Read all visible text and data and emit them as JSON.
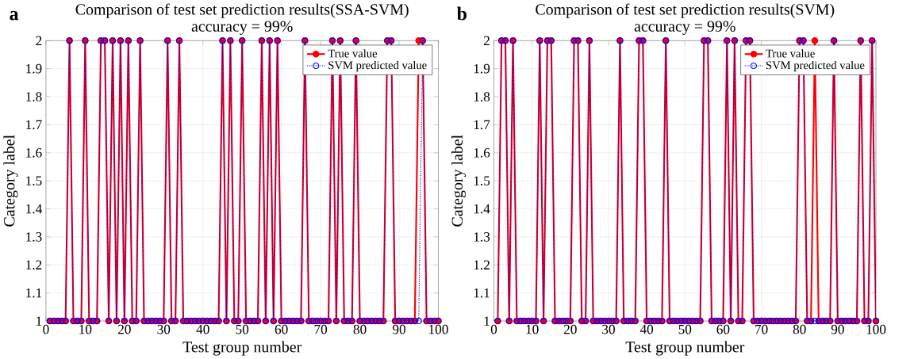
{
  "chart_data": [
    {
      "type": "line",
      "title": "Comparison of test set prediction results(SSA-SVM)",
      "subtitle": "accuracy = 99%",
      "xlabel": "Test group number",
      "ylabel": "Category label",
      "annotations": [
        "a"
      ],
      "x": [
        1,
        2,
        3,
        4,
        5,
        6,
        7,
        8,
        9,
        10,
        11,
        12,
        13,
        14,
        15,
        16,
        17,
        18,
        19,
        20,
        21,
        22,
        23,
        24,
        25,
        26,
        27,
        28,
        29,
        30,
        31,
        32,
        33,
        34,
        35,
        36,
        37,
        38,
        39,
        40,
        41,
        42,
        43,
        44,
        45,
        46,
        47,
        48,
        49,
        50,
        51,
        52,
        53,
        54,
        55,
        56,
        57,
        58,
        59,
        60,
        61,
        62,
        63,
        64,
        65,
        66,
        67,
        68,
        69,
        70,
        71,
        72,
        73,
        74,
        75,
        76,
        77,
        78,
        79,
        80,
        81,
        82,
        83,
        84,
        85,
        86,
        87,
        88,
        89,
        90,
        91,
        92,
        93,
        94,
        95,
        96,
        97,
        98,
        99,
        100
      ],
      "series": [
        {
          "name": "True value",
          "color": "#ff0000",
          "marker": "circle",
          "line_style": "solid",
          "values": [
            1,
            1,
            1,
            1,
            1,
            2,
            1,
            1,
            1,
            2,
            1,
            1,
            1,
            2,
            2,
            1,
            2,
            1,
            2,
            1,
            2,
            1,
            1,
            2,
            1,
            1,
            1,
            1,
            1,
            1,
            2,
            1,
            1,
            2,
            1,
            1,
            1,
            1,
            1,
            1,
            1,
            1,
            1,
            1,
            2,
            1,
            2,
            1,
            1,
            2,
            1,
            1,
            1,
            1,
            2,
            1,
            2,
            1,
            2,
            1,
            1,
            1,
            1,
            1,
            1,
            2,
            1,
            1,
            1,
            1,
            1,
            1,
            2,
            1,
            2,
            1,
            1,
            1,
            2,
            1,
            1,
            1,
            1,
            1,
            1,
            1,
            2,
            2,
            1,
            1,
            1,
            1,
            1,
            1,
            2,
            2,
            1,
            1,
            1,
            1
          ]
        },
        {
          "name": "SVM predicted value",
          "color": "#0000ff",
          "marker": "circle",
          "line_style": "dotted",
          "values": [
            1,
            1,
            1,
            1,
            1,
            2,
            1,
            1,
            1,
            2,
            1,
            1,
            1,
            2,
            2,
            1,
            2,
            1,
            2,
            1,
            2,
            1,
            1,
            2,
            1,
            1,
            1,
            1,
            1,
            1,
            2,
            1,
            1,
            2,
            1,
            1,
            1,
            1,
            1,
            1,
            1,
            1,
            1,
            1,
            2,
            1,
            2,
            1,
            1,
            2,
            1,
            1,
            1,
            1,
            2,
            1,
            2,
            1,
            2,
            1,
            1,
            1,
            1,
            1,
            1,
            2,
            1,
            1,
            1,
            1,
            1,
            1,
            2,
            1,
            2,
            1,
            1,
            1,
            2,
            1,
            1,
            1,
            1,
            1,
            1,
            1,
            2,
            2,
            1,
            1,
            1,
            1,
            1,
            1,
            1,
            2,
            1,
            1,
            1,
            1
          ]
        }
      ],
      "xlim": [
        0,
        100
      ],
      "xticks": [
        0,
        10,
        20,
        30,
        40,
        50,
        60,
        70,
        80,
        90,
        100
      ],
      "ylim": [
        1,
        2
      ],
      "yticks": [
        1,
        1.1,
        1.2,
        1.3,
        1.4,
        1.5,
        1.6,
        1.7,
        1.8,
        1.9,
        2
      ],
      "grid": true,
      "legend": "top right"
    },
    {
      "type": "line",
      "title": "Comparison of test set prediction results(SVM)",
      "subtitle": "accuracy = 99%",
      "xlabel": "Test group number",
      "ylabel": "Category label",
      "annotations": [
        "b"
      ],
      "x": [
        1,
        2,
        3,
        4,
        5,
        6,
        7,
        8,
        9,
        10,
        11,
        12,
        13,
        14,
        15,
        16,
        17,
        18,
        19,
        20,
        21,
        22,
        23,
        24,
        25,
        26,
        27,
        28,
        29,
        30,
        31,
        32,
        33,
        34,
        35,
        36,
        37,
        38,
        39,
        40,
        41,
        42,
        43,
        44,
        45,
        46,
        47,
        48,
        49,
        50,
        51,
        52,
        53,
        54,
        55,
        56,
        57,
        58,
        59,
        60,
        61,
        62,
        63,
        64,
        65,
        66,
        67,
        68,
        69,
        70,
        71,
        72,
        73,
        74,
        75,
        76,
        77,
        78,
        79,
        80,
        81,
        82,
        83,
        84,
        85,
        86,
        87,
        88,
        89,
        90,
        91,
        92,
        93,
        94,
        95,
        96,
        97,
        98,
        99,
        100
      ],
      "series": [
        {
          "name": "True value",
          "color": "#ff0000",
          "marker": "circle",
          "line_style": "solid",
          "values": [
            1,
            2,
            2,
            1,
            2,
            1,
            1,
            1,
            1,
            1,
            1,
            2,
            1,
            2,
            2,
            1,
            1,
            1,
            1,
            1,
            2,
            2,
            1,
            1,
            2,
            1,
            1,
            1,
            1,
            1,
            1,
            1,
            2,
            1,
            1,
            1,
            1,
            2,
            2,
            1,
            1,
            1,
            1,
            1,
            2,
            1,
            1,
            1,
            1,
            1,
            1,
            1,
            1,
            1,
            2,
            2,
            1,
            1,
            1,
            1,
            2,
            1,
            2,
            1,
            1,
            2,
            2,
            1,
            1,
            1,
            1,
            1,
            1,
            1,
            1,
            1,
            1,
            1,
            1,
            2,
            2,
            1,
            1,
            2,
            1,
            1,
            1,
            1,
            2,
            1,
            1,
            1,
            1,
            1,
            1,
            2,
            1,
            1,
            2,
            1
          ]
        },
        {
          "name": "SVM predicted value",
          "color": "#0000ff",
          "marker": "circle",
          "line_style": "dotted",
          "values": [
            1,
            2,
            2,
            1,
            2,
            1,
            1,
            1,
            1,
            1,
            1,
            2,
            1,
            2,
            2,
            1,
            1,
            1,
            1,
            1,
            2,
            2,
            1,
            1,
            2,
            1,
            1,
            1,
            1,
            1,
            1,
            1,
            2,
            1,
            1,
            1,
            1,
            2,
            2,
            1,
            1,
            1,
            1,
            1,
            2,
            1,
            1,
            1,
            1,
            1,
            1,
            1,
            1,
            1,
            2,
            2,
            1,
            1,
            1,
            1,
            2,
            1,
            2,
            1,
            1,
            2,
            2,
            1,
            1,
            1,
            1,
            1,
            1,
            1,
            1,
            1,
            1,
            1,
            1,
            2,
            2,
            1,
            1,
            1,
            1,
            1,
            1,
            1,
            2,
            1,
            1,
            1,
            1,
            1,
            1,
            2,
            1,
            1,
            2,
            1
          ]
        }
      ],
      "xlim": [
        0,
        100
      ],
      "xticks": [
        0,
        10,
        20,
        30,
        40,
        50,
        60,
        70,
        80,
        90,
        100
      ],
      "ylim": [
        1,
        2
      ],
      "yticks": [
        1,
        1.1,
        1.2,
        1.3,
        1.4,
        1.5,
        1.6,
        1.7,
        1.8,
        1.9,
        2
      ],
      "grid": true,
      "legend": "top right"
    }
  ]
}
